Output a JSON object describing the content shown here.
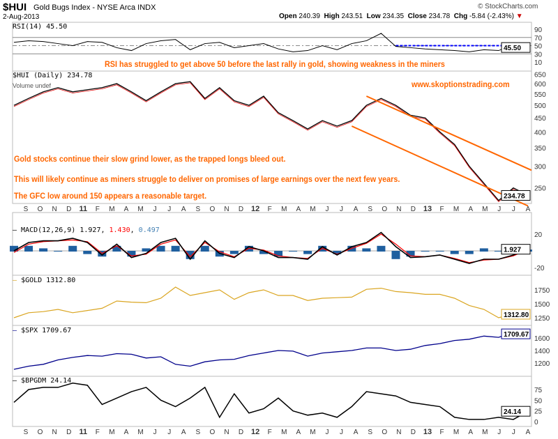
{
  "header": {
    "symbol": "$HUI",
    "name": "Gold Bugs Index - NYSE Arca INDX",
    "date": "2-Aug-2013",
    "brand": "© StockCharts.com",
    "open_label": "Open",
    "open": "240.39",
    "high_label": "High",
    "high": "243.51",
    "low_label": "Low",
    "low": "234.35",
    "close_label": "Close",
    "close": "234.78",
    "chg_label": "Chg",
    "chg": "-5.84 (-2.43%)"
  },
  "annotations": {
    "rsi": "RSI has struggled to get above 50 before the last rally in gold, showing weakness in the miners",
    "site": "www.skoptionstrading.com",
    "a1": "Gold stocks continue their slow grind lower, as the trapped longs bleed out.",
    "a2": "This will likely continue as miners struggle to deliver on promises of large earnings over the next few years.",
    "a3": "The GFC low around 150 appears a reasonable target."
  },
  "colors": {
    "annotation": "#ff6600",
    "gold": "#daa520",
    "spx": "#00008b",
    "macd": "#000000",
    "signal": "#ff0000",
    "histogram": "#1f5f9f",
    "rsi_ref": "#0000ff"
  },
  "chart_data": [
    {
      "type": "line",
      "title": "RSI(14) 45.50",
      "label": "RSI(14)",
      "value": "45.50",
      "ylim": [
        10,
        90
      ],
      "yticks": [
        "90",
        "70",
        "50",
        "30",
        "10"
      ],
      "reference_lines": [
        70,
        30,
        50
      ],
      "annotation_line": {
        "value": 50,
        "from": "Nov 2012",
        "to": "Aug 2013",
        "style": "dashed blue"
      },
      "values": [
        58,
        62,
        60,
        55,
        50,
        60,
        58,
        45,
        38,
        55,
        62,
        65,
        40,
        55,
        58,
        45,
        50,
        55,
        42,
        35,
        38,
        50,
        40,
        55,
        62,
        80,
        48,
        45,
        42,
        40,
        38,
        35,
        40,
        38,
        52,
        45.5
      ]
    },
    {
      "type": "candlestick-line",
      "title": "$HUI (Daily) 234.78",
      "label": "$HUI (Daily)",
      "value": "234.78",
      "sublabel": "Volume undef",
      "scale": "log",
      "yticks": [
        "650",
        "600",
        "550",
        "500",
        "450",
        "400",
        "350",
        "300",
        "250"
      ],
      "values": [
        500,
        530,
        560,
        580,
        560,
        570,
        580,
        600,
        560,
        520,
        560,
        600,
        610,
        530,
        580,
        520,
        500,
        540,
        470,
        440,
        410,
        440,
        420,
        440,
        500,
        530,
        500,
        460,
        450,
        400,
        360,
        300,
        260,
        225,
        250,
        235
      ],
      "channel": {
        "upper": [
          [
            24,
            540
          ],
          [
            35,
            290
          ]
        ],
        "lower": [
          [
            23,
            420
          ],
          [
            35,
            215
          ]
        ]
      }
    },
    {
      "type": "line",
      "title": "MACD(12,26,9)",
      "label": "MACD(12,26,9)",
      "macd": "1.927",
      "signal": "1.430",
      "hist": "0.497",
      "ylim": [
        -30,
        30
      ],
      "yticks": [
        "20",
        "-20"
      ],
      "series": [
        {
          "name": "MACD",
          "values": [
            0,
            10,
            12,
            12,
            15,
            10,
            -5,
            8,
            -8,
            -3,
            10,
            15,
            -10,
            12,
            -3,
            -8,
            5,
            0,
            -8,
            -8,
            -10,
            5,
            -5,
            5,
            10,
            22,
            5,
            -8,
            -7,
            -5,
            -10,
            -15,
            -10,
            -10,
            -5,
            1.927
          ]
        },
        {
          "name": "Signal",
          "values": [
            -2,
            8,
            11,
            12,
            13,
            11,
            -3,
            6,
            -6,
            -4,
            8,
            13,
            -7,
            10,
            -1,
            -7,
            3,
            1,
            -6,
            -8,
            -9,
            3,
            -4,
            3,
            9,
            20,
            8,
            -6,
            -7,
            -5,
            -9,
            -14,
            -11,
            -10,
            -6,
            1.43
          ]
        }
      ]
    },
    {
      "type": "line",
      "title": "$GOLD 1312.80",
      "label": "$GOLD",
      "value": "1312.80",
      "yticks": [
        "1750",
        "1500",
        "1250"
      ],
      "values": [
        1250,
        1340,
        1360,
        1400,
        1340,
        1380,
        1420,
        1550,
        1530,
        1520,
        1600,
        1800,
        1650,
        1700,
        1750,
        1580,
        1700,
        1750,
        1650,
        1650,
        1560,
        1600,
        1610,
        1620,
        1760,
        1780,
        1720,
        1700,
        1670,
        1670,
        1600,
        1470,
        1400,
        1250,
        1320,
        1312.8
      ]
    },
    {
      "type": "line",
      "title": "$SPX 1709.67",
      "label": "$SPX",
      "value": "1709.67",
      "yticks": [
        "1600",
        "1400",
        "1200"
      ],
      "values": [
        1100,
        1150,
        1180,
        1250,
        1290,
        1320,
        1310,
        1350,
        1340,
        1280,
        1300,
        1180,
        1150,
        1220,
        1250,
        1260,
        1320,
        1360,
        1400,
        1390,
        1310,
        1360,
        1380,
        1400,
        1440,
        1440,
        1400,
        1420,
        1480,
        1510,
        1560,
        1580,
        1630,
        1610,
        1690,
        1709.67
      ]
    },
    {
      "type": "line",
      "title": "$BPGDM 24.14",
      "label": "$BPGDM",
      "value": "24.14",
      "yticks": [
        "75",
        "50",
        "25",
        "0"
      ],
      "values": [
        45,
        75,
        80,
        80,
        90,
        85,
        40,
        55,
        70,
        80,
        50,
        35,
        55,
        80,
        10,
        65,
        20,
        30,
        55,
        25,
        15,
        20,
        10,
        35,
        70,
        65,
        60,
        45,
        40,
        35,
        10,
        5,
        5,
        10,
        5,
        24.14
      ]
    }
  ],
  "xaxis": {
    "labels": [
      "S",
      "O",
      "N",
      "D",
      "11",
      "F",
      "M",
      "A",
      "M",
      "J",
      "J",
      "A",
      "S",
      "O",
      "N",
      "D",
      "12",
      "F",
      "M",
      "A",
      "M",
      "J",
      "J",
      "A",
      "S",
      "O",
      "N",
      "D",
      "13",
      "F",
      "M",
      "A",
      "M",
      "J",
      "J",
      "A"
    ]
  }
}
